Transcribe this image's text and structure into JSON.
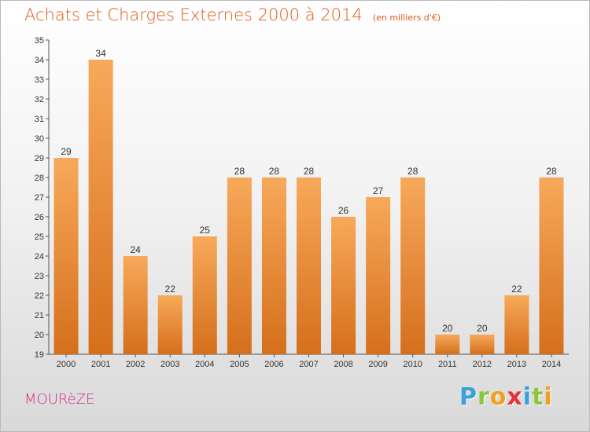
{
  "chart_data": {
    "type": "bar",
    "title": "Achats et Charges Externes 2000 à 2014",
    "unit_label": "(en milliers d'€)",
    "categories": [
      "2000",
      "2001",
      "2002",
      "2003",
      "2004",
      "2005",
      "2006",
      "2007",
      "2008",
      "2009",
      "2010",
      "2011",
      "2012",
      "2013",
      "2014"
    ],
    "values": [
      29,
      34,
      24,
      22,
      25,
      28,
      28,
      28,
      26,
      27,
      28,
      20,
      20,
      22,
      28
    ],
    "data_labels": [
      "29",
      "34",
      "24",
      "22",
      "25",
      "28",
      "28",
      "28",
      "26",
      "27",
      "28",
      "20",
      "20",
      "22",
      "28"
    ],
    "ylim": [
      19,
      35
    ],
    "yticks": [
      "19",
      "20",
      "21",
      "22",
      "23",
      "24",
      "25",
      "26",
      "27",
      "28",
      "29",
      "30",
      "31",
      "32",
      "33",
      "34",
      "35"
    ],
    "grid": false,
    "bar_color_top": "#f7a95a",
    "bar_color_bottom": "#d56f1c"
  },
  "commune": "MOURèZE",
  "logo": {
    "letters": [
      {
        "char": "P",
        "color": "#3aa0d8"
      },
      {
        "char": "r",
        "color": "#8cc63f"
      },
      {
        "char": "o",
        "color": "#f29f1f"
      },
      {
        "char": "x",
        "color": "#e6323c"
      },
      {
        "char": "i",
        "color": "#3aa0d8"
      },
      {
        "char": "t",
        "color": "#8cc63f"
      },
      {
        "char": "i",
        "color": "#f29f1f"
      }
    ]
  }
}
